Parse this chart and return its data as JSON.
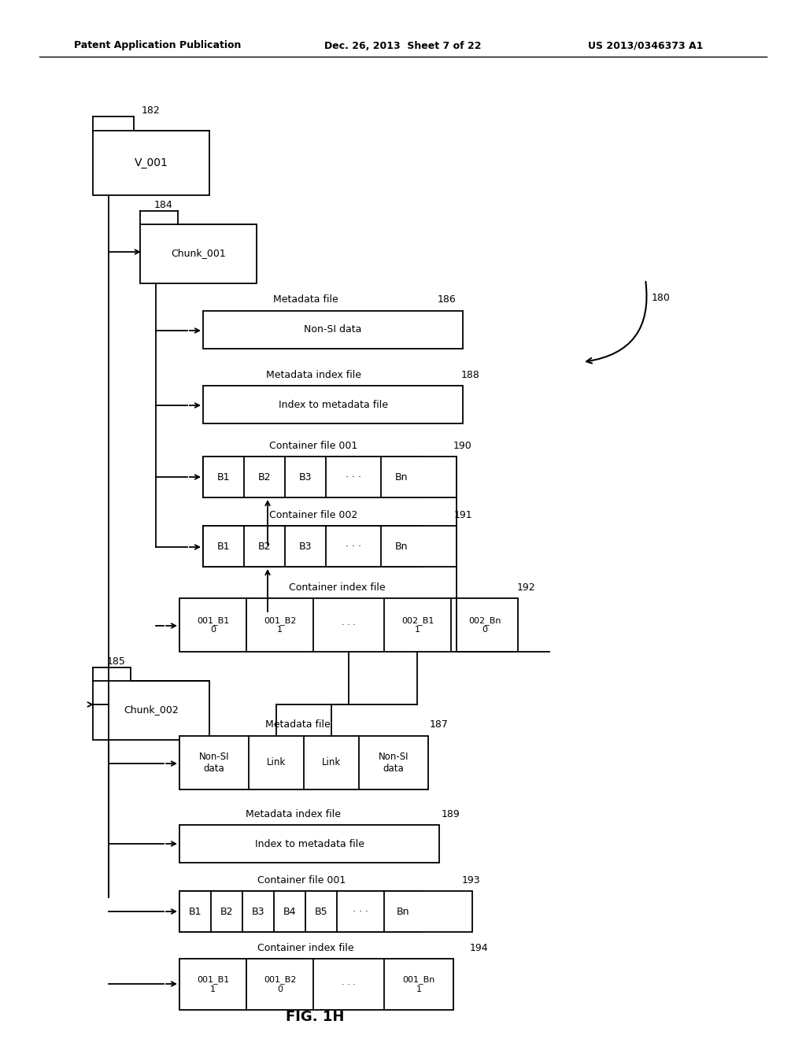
{
  "bg_color": "#ffffff",
  "header_left": "Patent Application Publication",
  "header_mid": "Dec. 26, 2013  Sheet 7 of 22",
  "header_right": "US 2013/0346373 A1",
  "fig_label": "FIG. 1H",
  "ref_180": "180",
  "ref_182": "182",
  "ref_184": "184",
  "ref_185": "185",
  "ref_186": "186",
  "ref_187": "187",
  "ref_188": "188",
  "ref_189": "189",
  "ref_190": "190",
  "ref_191": "191",
  "ref_192": "192",
  "ref_193": "193",
  "ref_194": "194"
}
